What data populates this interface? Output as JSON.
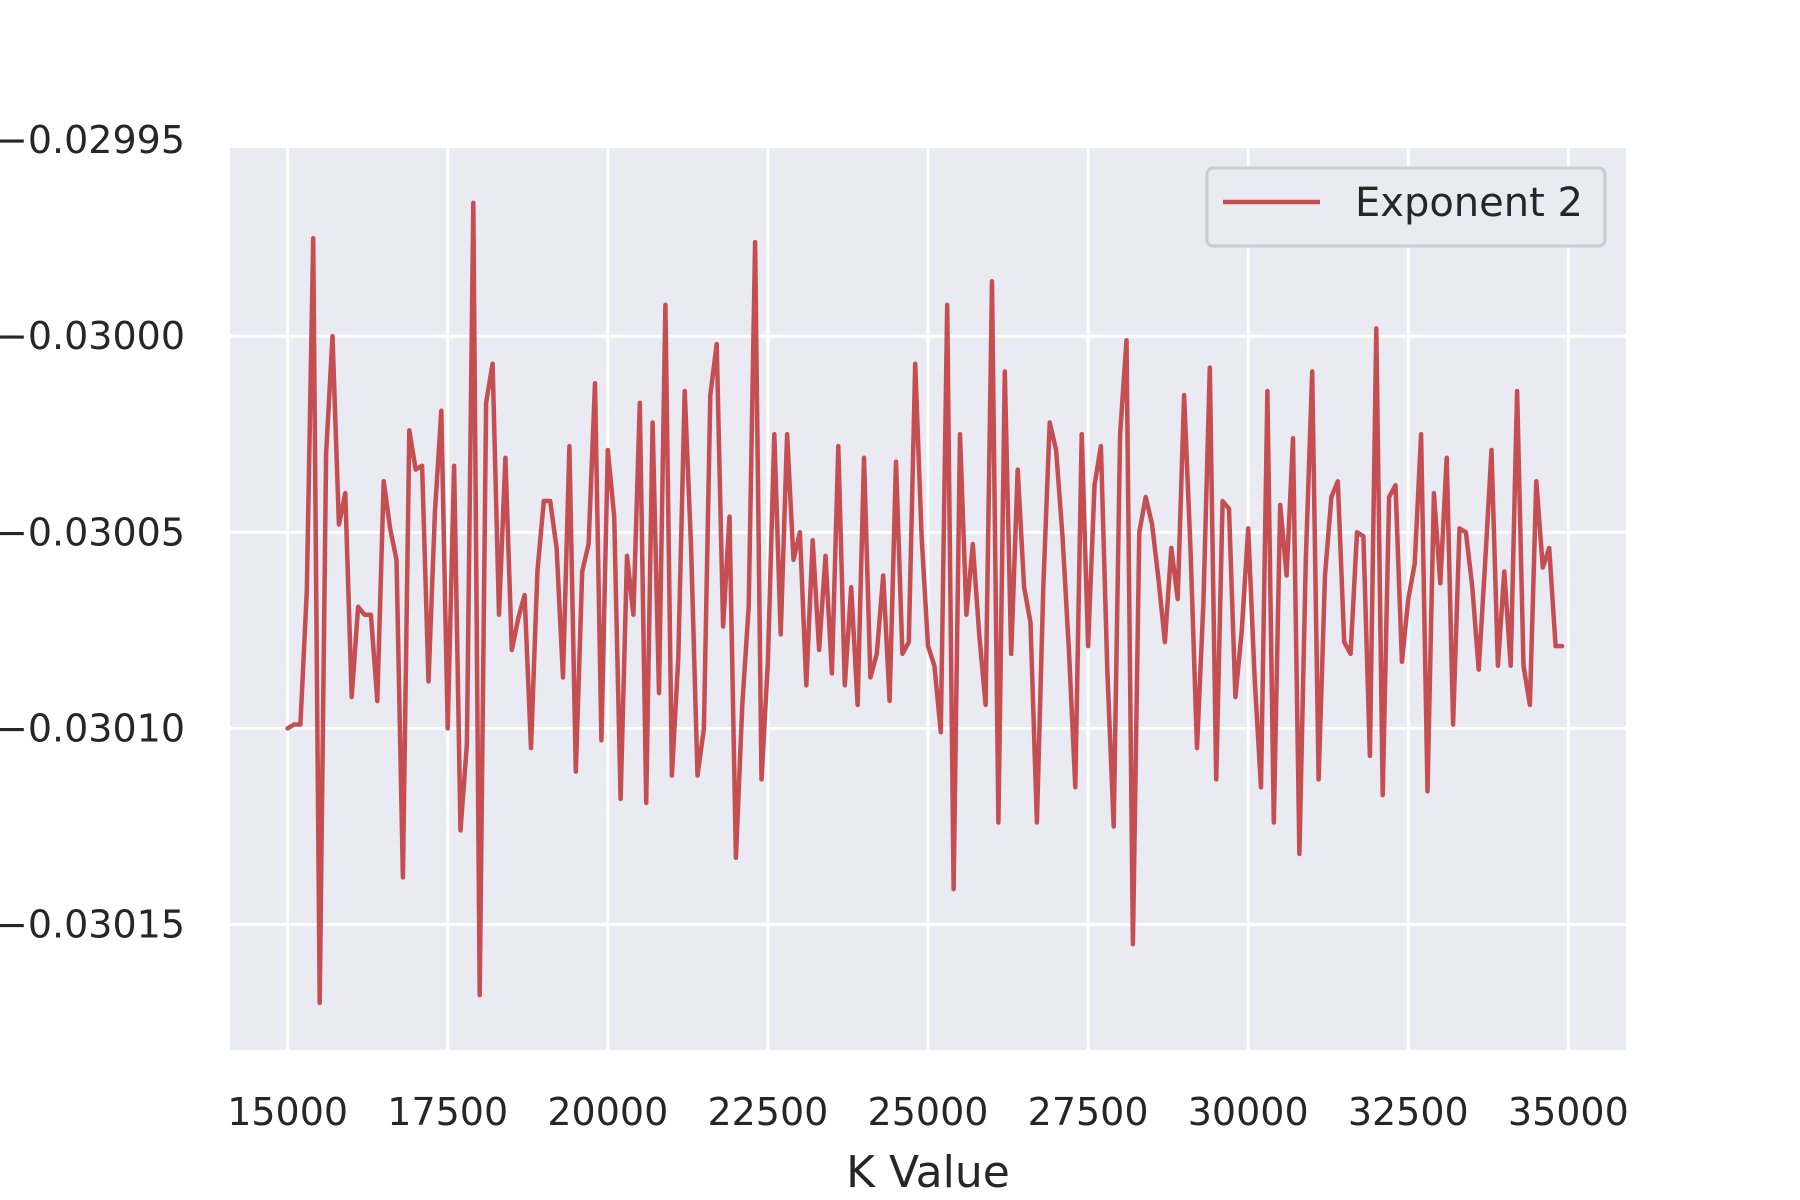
{
  "chart_data": {
    "type": "line",
    "xlabel": "K Value",
    "ylabel": "",
    "title": "",
    "xlim": [
      14100,
      35900
    ],
    "ylim": [
      -0.030182,
      -0.029952
    ],
    "xticks": [
      15000,
      17500,
      20000,
      22500,
      25000,
      27500,
      30000,
      32500,
      35000
    ],
    "xtick_labels": [
      "15000",
      "17500",
      "20000",
      "22500",
      "25000",
      "27500",
      "30000",
      "32500",
      "35000"
    ],
    "yticks": [
      -0.02995,
      -0.03,
      -0.03005,
      -0.0301,
      -0.03015
    ],
    "ytick_labels": [
      "−0.02995",
      "−0.03000",
      "−0.03005",
      "−0.03010",
      "−0.03015"
    ],
    "grid": true,
    "legend_position": "top-right",
    "colors": {
      "background": "#eaeaf2",
      "grid": "#ffffff",
      "line": "#c44e52",
      "legend_border": "#cccccc"
    },
    "series": [
      {
        "name": "Exponent 2",
        "x_start": 15000,
        "x_step": 100,
        "y": [
          -0.0301,
          -0.030099,
          -0.030099,
          -0.030065,
          -0.029975,
          -0.03017,
          -0.03003,
          -0.03,
          -0.030048,
          -0.03004,
          -0.030092,
          -0.030069,
          -0.030071,
          -0.030071,
          -0.030093,
          -0.030037,
          -0.030049,
          -0.030057,
          -0.030138,
          -0.030024,
          -0.030034,
          -0.030033,
          -0.030088,
          -0.030045,
          -0.030019,
          -0.0301,
          -0.030033,
          -0.030126,
          -0.030104,
          -0.029966,
          -0.030168,
          -0.030017,
          -0.030007,
          -0.030071,
          -0.030031,
          -0.03008,
          -0.030072,
          -0.030066,
          -0.030105,
          -0.03006,
          -0.030042,
          -0.030042,
          -0.030054,
          -0.030087,
          -0.030028,
          -0.030111,
          -0.03006,
          -0.030053,
          -0.030012,
          -0.030103,
          -0.030029,
          -0.030046,
          -0.030118,
          -0.030056,
          -0.030071,
          -0.030017,
          -0.030119,
          -0.030022,
          -0.030091,
          -0.029992,
          -0.030112,
          -0.030082,
          -0.030014,
          -0.030054,
          -0.030112,
          -0.0301,
          -0.030015,
          -0.030002,
          -0.030074,
          -0.030046,
          -0.030133,
          -0.030094,
          -0.030069,
          -0.029976,
          -0.030113,
          -0.030083,
          -0.030025,
          -0.030076,
          -0.030025,
          -0.030057,
          -0.03005,
          -0.030089,
          -0.030052,
          -0.03008,
          -0.030056,
          -0.030086,
          -0.030028,
          -0.030089,
          -0.030064,
          -0.030094,
          -0.030031,
          -0.030087,
          -0.030081,
          -0.030061,
          -0.030093,
          -0.030032,
          -0.030081,
          -0.030078,
          -0.030007,
          -0.030051,
          -0.030079,
          -0.030084,
          -0.030101,
          -0.029992,
          -0.030141,
          -0.030025,
          -0.030071,
          -0.030053,
          -0.030076,
          -0.030094,
          -0.029986,
          -0.030124,
          -0.030009,
          -0.030081,
          -0.030034,
          -0.030064,
          -0.030073,
          -0.030124,
          -0.030064,
          -0.030022,
          -0.030029,
          -0.030051,
          -0.03008,
          -0.030115,
          -0.030025,
          -0.030079,
          -0.030038,
          -0.030028,
          -0.030085,
          -0.030125,
          -0.030025,
          -0.030001,
          -0.030155,
          -0.03005,
          -0.030041,
          -0.030048,
          -0.030062,
          -0.030078,
          -0.030054,
          -0.030067,
          -0.030015,
          -0.030055,
          -0.030105,
          -0.030068,
          -0.030008,
          -0.030113,
          -0.030042,
          -0.030044,
          -0.030092,
          -0.030075,
          -0.030049,
          -0.030087,
          -0.030115,
          -0.030014,
          -0.030124,
          -0.030043,
          -0.030061,
          -0.030026,
          -0.030132,
          -0.030057,
          -0.030009,
          -0.030113,
          -0.030061,
          -0.030041,
          -0.030037,
          -0.030078,
          -0.030081,
          -0.03005,
          -0.030051,
          -0.030107,
          -0.029998,
          -0.030117,
          -0.030041,
          -0.030038,
          -0.030083,
          -0.030067,
          -0.030058,
          -0.030025,
          -0.030116,
          -0.03004,
          -0.030063,
          -0.030031,
          -0.030099,
          -0.030049,
          -0.03005,
          -0.030064,
          -0.030085,
          -0.030058,
          -0.030029,
          -0.030084,
          -0.03006,
          -0.030084,
          -0.030014,
          -0.030084,
          -0.030094,
          -0.030037,
          -0.030059,
          -0.030054,
          -0.030079,
          -0.030079
        ]
      }
    ]
  }
}
